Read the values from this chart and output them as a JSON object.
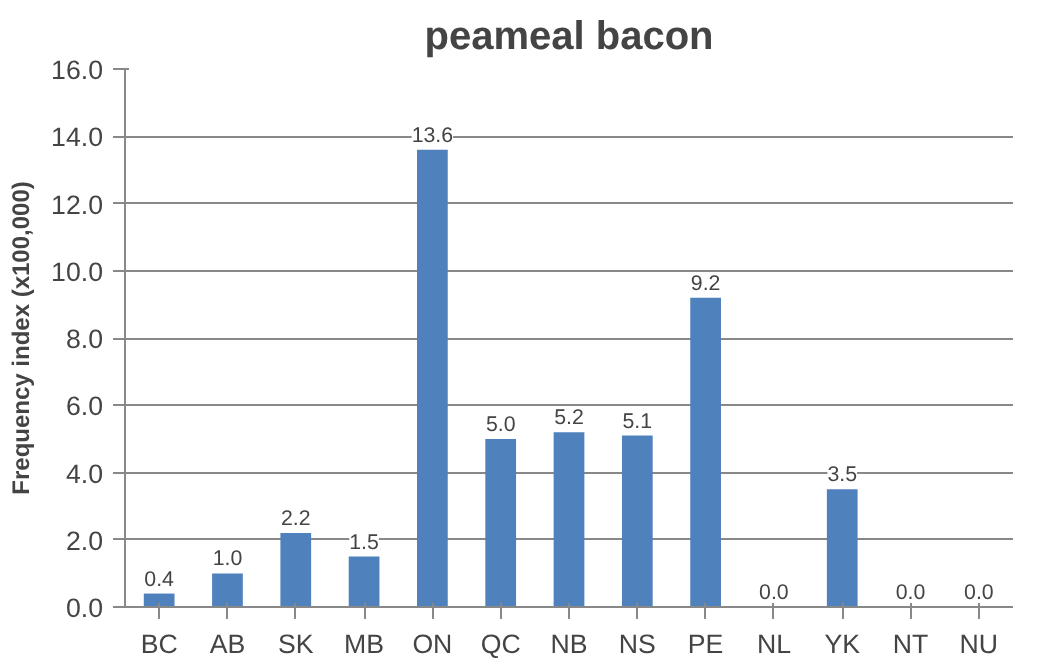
{
  "chart_data": {
    "type": "bar",
    "title": "peameal bacon",
    "ylabel": "Frequency index (x100,000)",
    "categories": [
      "BC",
      "AB",
      "SK",
      "MB",
      "ON",
      "QC",
      "NB",
      "NS",
      "PE",
      "NL",
      "YK",
      "NT",
      "NU"
    ],
    "values": [
      0.4,
      1.0,
      2.2,
      1.5,
      13.6,
      5.0,
      5.2,
      5.1,
      9.2,
      0.0,
      3.5,
      0.0,
      0.0
    ],
    "value_labels": [
      "0.4",
      "1.0",
      "2.2",
      "1.5",
      "13.6",
      "5.0",
      "5.2",
      "5.1",
      "9.2",
      "0.0",
      "3.5",
      "0.0",
      "0.0"
    ],
    "color": "#4f81bd",
    "ylim": [
      0,
      16
    ],
    "yticks": [
      {
        "value": 0,
        "label": "0.0"
      },
      {
        "value": 2,
        "label": "2.0"
      },
      {
        "value": 4,
        "label": "4.0"
      },
      {
        "value": 6,
        "label": "6.0"
      },
      {
        "value": 8,
        "label": "8.0"
      },
      {
        "value": 10,
        "label": "10.0"
      },
      {
        "value": 12,
        "label": "12.0"
      },
      {
        "value": 14,
        "label": "14.0"
      },
      {
        "value": 16,
        "label": "16.0"
      }
    ],
    "grid": "y"
  }
}
